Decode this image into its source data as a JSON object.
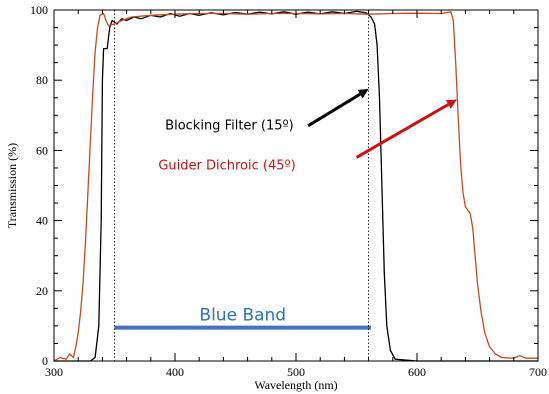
{
  "chart_data": {
    "type": "line",
    "title": "",
    "xlabel": "Wavelength (nm)",
    "ylabel": "Transmission (%)",
    "xlim": [
      300,
      700
    ],
    "ylim": [
      0,
      100
    ],
    "x_ticks": [
      300,
      400,
      500,
      600,
      700
    ],
    "y_ticks": [
      0,
      20,
      40,
      60,
      80,
      100
    ],
    "grid": false,
    "series": [
      {
        "color": "#000000",
        "points": [
          [
            300,
            0
          ],
          [
            330,
            0
          ],
          [
            334,
            1
          ],
          [
            337,
            10
          ],
          [
            339,
            40
          ],
          [
            340,
            80
          ],
          [
            341,
            89
          ],
          [
            344,
            89
          ],
          [
            346,
            95
          ],
          [
            348,
            97
          ],
          [
            352,
            96
          ],
          [
            356,
            97.5
          ],
          [
            360,
            97
          ],
          [
            366,
            98
          ],
          [
            372,
            97.5
          ],
          [
            380,
            98.5
          ],
          [
            388,
            98
          ],
          [
            396,
            99
          ],
          [
            404,
            98.2
          ],
          [
            412,
            99
          ],
          [
            420,
            98.5
          ],
          [
            430,
            99.2
          ],
          [
            440,
            98.6
          ],
          [
            450,
            99.3
          ],
          [
            460,
            98.8
          ],
          [
            470,
            99.4
          ],
          [
            480,
            98.9
          ],
          [
            490,
            99.5
          ],
          [
            500,
            98.8
          ],
          [
            510,
            99.4
          ],
          [
            520,
            98.9
          ],
          [
            530,
            99.5
          ],
          [
            540,
            99
          ],
          [
            550,
            99.6
          ],
          [
            558,
            99.2
          ],
          [
            562,
            98
          ],
          [
            565,
            96
          ],
          [
            567,
            90
          ],
          [
            569,
            75
          ],
          [
            571,
            50
          ],
          [
            573,
            25
          ],
          [
            575,
            10
          ],
          [
            578,
            3
          ],
          [
            582,
            0.5
          ],
          [
            600,
            0
          ],
          [
            700,
            0
          ]
        ]
      },
      {
        "color": "#cc4a1c",
        "points": [
          [
            300,
            0
          ],
          [
            305,
            1
          ],
          [
            310,
            0.5
          ],
          [
            313,
            2
          ],
          [
            316,
            1
          ],
          [
            318,
            4
          ],
          [
            320,
            8
          ],
          [
            322,
            14
          ],
          [
            324,
            22
          ],
          [
            326,
            34
          ],
          [
            328,
            48
          ],
          [
            330,
            62
          ],
          [
            332,
            76
          ],
          [
            334,
            88
          ],
          [
            336,
            95
          ],
          [
            338,
            98.5
          ],
          [
            341,
            99
          ],
          [
            343,
            97
          ],
          [
            345,
            95.5
          ],
          [
            350,
            96
          ],
          [
            356,
            97
          ],
          [
            364,
            98
          ],
          [
            380,
            98.5
          ],
          [
            400,
            98.8
          ],
          [
            420,
            99
          ],
          [
            440,
            99
          ],
          [
            460,
            98.8
          ],
          [
            480,
            99
          ],
          [
            500,
            99
          ],
          [
            520,
            98.9
          ],
          [
            540,
            99
          ],
          [
            560,
            98.8
          ],
          [
            580,
            99
          ],
          [
            600,
            99.1
          ],
          [
            620,
            99
          ],
          [
            628,
            99.5
          ],
          [
            630,
            97
          ],
          [
            632,
            85
          ],
          [
            634,
            70
          ],
          [
            636,
            56
          ],
          [
            638,
            48
          ],
          [
            640,
            44
          ],
          [
            642,
            43
          ],
          [
            644,
            42
          ],
          [
            646,
            38
          ],
          [
            648,
            30
          ],
          [
            650,
            22
          ],
          [
            653,
            14
          ],
          [
            656,
            8
          ],
          [
            660,
            4
          ],
          [
            665,
            2
          ],
          [
            670,
            1
          ],
          [
            680,
            0.8
          ],
          [
            685,
            1.5
          ],
          [
            690,
            0.8
          ],
          [
            700,
            0.8
          ]
        ]
      }
    ],
    "vlines": [
      350,
      560
    ],
    "blue_band": {
      "x": [
        350,
        562
      ],
      "y": 9.5,
      "label": "Blue Band",
      "color": "#4472c4",
      "label_color": "#2e74b5"
    },
    "annotations": [
      {
        "text": "Blocking Filter (15º)",
        "color": "#000000",
        "text_at": [
          445,
          66
        ],
        "arrow_from": [
          510,
          67
        ],
        "arrow_to": [
          560,
          77.5
        ]
      },
      {
        "text": "Guider Dichroic (45º)",
        "color": "#cc1111",
        "text_at": [
          443,
          54.5
        ],
        "arrow_from": [
          550,
          58
        ],
        "arrow_to": [
          633,
          74.5
        ]
      }
    ]
  }
}
